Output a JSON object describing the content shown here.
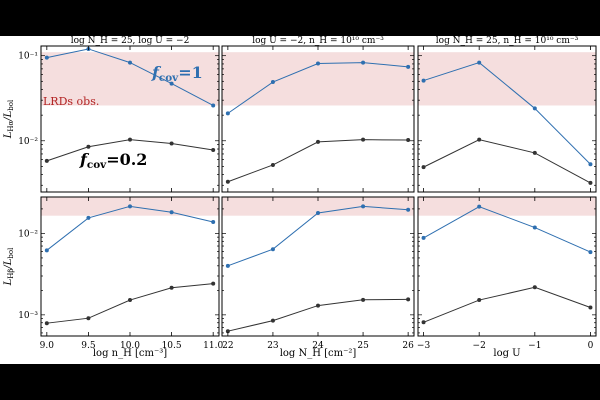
{
  "chart_data": {
    "type": "line",
    "y_scale": "log",
    "shaded_band_color": "#f5dede",
    "series_colors": {
      "fcov_1": "#2e6fb0",
      "fcov_0_2": "#333333"
    },
    "annotations": {
      "band_label": "LRDs obs.",
      "band_label_color": "#b22222",
      "fcov1_label": "f",
      "fcov1_sub": "cov",
      "fcov1_value": "=1",
      "fcov1_color": "#2e6fb0",
      "fcov02_label": "f",
      "fcov02_sub": "cov",
      "fcov02_value": "=0.2"
    },
    "rows": [
      {
        "ylabel_main": "L",
        "ylabel_sub": "Hα",
        "ylabel_mid": "/L",
        "ylabel_sub2": "bol",
        "ylim": [
          0.0025,
          0.13
        ],
        "yticks": [
          0.01,
          0.1
        ],
        "ytick_labels": [
          "10⁻²",
          "10⁻¹"
        ],
        "band": [
          0.026,
          0.11
        ]
      },
      {
        "ylabel_main": "L",
        "ylabel_sub": "Hβ",
        "ylabel_mid": "/L",
        "ylabel_sub2": "bol",
        "ylim": [
          0.00055,
          0.028
        ],
        "yticks": [
          0.001,
          0.01
        ],
        "ytick_labels": [
          "10⁻³",
          "10⁻²"
        ],
        "band": [
          0.0165,
          0.028
        ]
      }
    ],
    "columns": [
      {
        "title": "log N_H = 25, log U = −2",
        "xlabel": "log n_H [cm⁻³]",
        "x": [
          9.0,
          9.5,
          10.0,
          10.5,
          11.0
        ],
        "xlim": [
          8.93,
          11.07
        ],
        "xticks": [
          9.0,
          9.5,
          10.0,
          10.5,
          11.0
        ],
        "xtick_labels": [
          "9.0",
          "9.5",
          "10.0",
          "10.5",
          "11.0"
        ]
      },
      {
        "title": "log U = −2, n_H = 10¹⁰ cm⁻³",
        "xlabel": "log N_H [cm⁻²]",
        "x": [
          22,
          23,
          24,
          25,
          26
        ],
        "xlim": [
          21.87,
          26.13
        ],
        "xticks": [
          22,
          23,
          24,
          25,
          26
        ],
        "xtick_labels": [
          "22",
          "23",
          "24",
          "25",
          "26"
        ]
      },
      {
        "title": "log N_H = 25, n_H = 10¹⁰ cm⁻³",
        "xlabel": "log U",
        "x": [
          -3,
          -2,
          -1,
          0
        ],
        "xlim": [
          -3.1,
          0.1
        ],
        "xticks": [
          -3,
          -2,
          -1,
          0
        ],
        "xtick_labels": [
          "−3",
          "−2",
          "−1",
          "0"
        ]
      }
    ],
    "panels": [
      {
        "row": 0,
        "col": 0,
        "series": [
          {
            "key": "fcov_1",
            "values": [
              0.095,
              0.12,
              0.083,
              0.047,
              0.026
            ]
          },
          {
            "key": "fcov_0_2",
            "values": [
              0.0058,
              0.0085,
              0.0103,
              0.0093,
              0.0078
            ]
          }
        ]
      },
      {
        "row": 0,
        "col": 1,
        "series": [
          {
            "key": "fcov_1",
            "values": [
              0.021,
              0.049,
              0.081,
              0.083,
              0.074
            ]
          },
          {
            "key": "fcov_0_2",
            "values": [
              0.0033,
              0.0052,
              0.0097,
              0.0103,
              0.0102
            ]
          }
        ]
      },
      {
        "row": 0,
        "col": 2,
        "series": [
          {
            "key": "fcov_1",
            "values": [
              0.051,
              0.083,
              0.024,
              0.0053
            ]
          },
          {
            "key": "fcov_0_2",
            "values": [
              0.0049,
              0.0103,
              0.0072,
              0.0032
            ]
          }
        ]
      },
      {
        "row": 1,
        "col": 0,
        "series": [
          {
            "key": "fcov_1",
            "values": [
              0.0062,
              0.0155,
              0.0215,
              0.0182,
              0.0138
            ]
          },
          {
            "key": "fcov_0_2",
            "values": [
              0.00079,
              0.00091,
              0.00152,
              0.00215,
              0.00242
            ]
          }
        ]
      },
      {
        "row": 1,
        "col": 1,
        "series": [
          {
            "key": "fcov_1",
            "values": [
              0.004,
              0.0064,
              0.0178,
              0.0215,
              0.0195
            ]
          },
          {
            "key": "fcov_0_2",
            "values": [
              0.00063,
              0.00085,
              0.0013,
              0.00153,
              0.00155
            ]
          }
        ]
      },
      {
        "row": 1,
        "col": 2,
        "series": [
          {
            "key": "fcov_1",
            "values": [
              0.0088,
              0.0213,
              0.0118,
              0.0059
            ]
          },
          {
            "key": "fcov_0_2",
            "values": [
              0.00081,
              0.00152,
              0.00218,
              0.00123
            ]
          }
        ]
      }
    ]
  }
}
